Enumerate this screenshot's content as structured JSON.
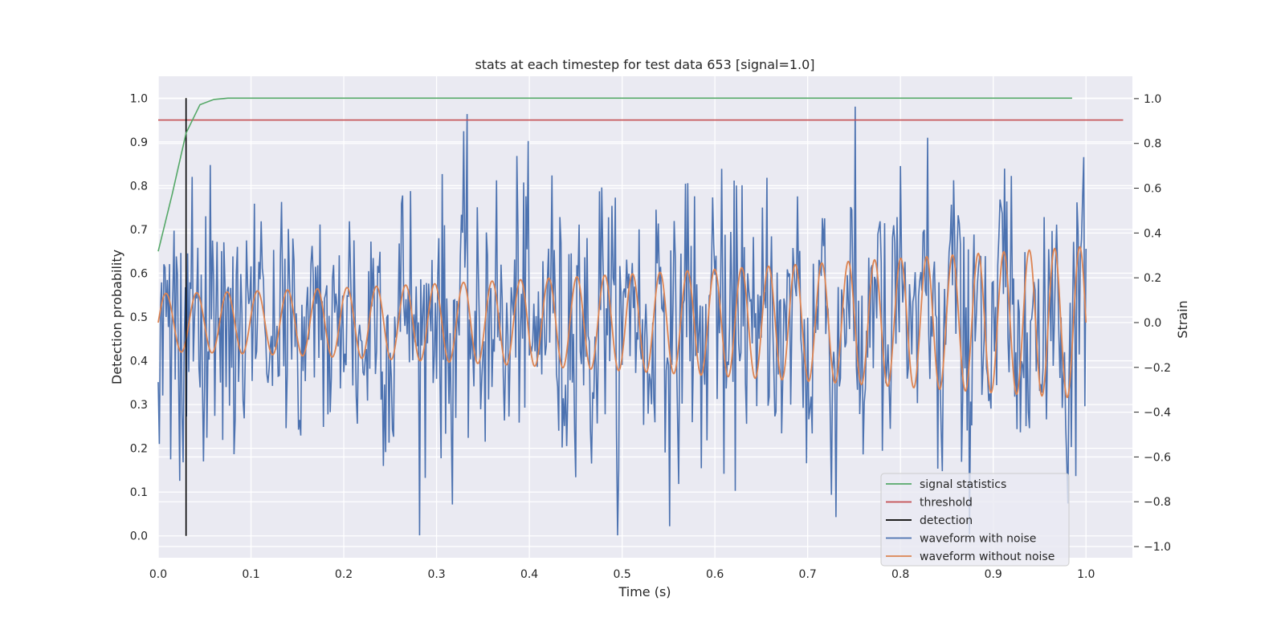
{
  "chart_data": {
    "type": "line",
    "title": "stats at each timestep for test data 653 [signal=1.0]",
    "xlabel": "Time (s)",
    "ylabel_left": "Detection probability",
    "ylabel_right": "Strain",
    "xlim": [
      0.0,
      1.05
    ],
    "ylim_left": [
      -0.05,
      1.05
    ],
    "ylim_right": [
      -1.05,
      1.1
    ],
    "grid": true,
    "legend_position": "lower-right",
    "x_ticks": [
      "0.0",
      "0.1",
      "0.2",
      "0.3",
      "0.4",
      "0.5",
      "0.6",
      "0.7",
      "0.8",
      "0.9",
      "1.0"
    ],
    "y_ticks_left": [
      "0.0",
      "0.1",
      "0.2",
      "0.3",
      "0.4",
      "0.5",
      "0.6",
      "0.7",
      "0.8",
      "0.9",
      "1.0"
    ],
    "y_ticks_right": [
      "−1.0",
      "−0.8",
      "−0.6",
      "−0.4",
      "−0.2",
      "0.0",
      "0.2",
      "0.4",
      "0.6",
      "0.8",
      "1.0"
    ],
    "series": [
      {
        "name": "signal statistics",
        "axis": "left",
        "color": "#55a868",
        "x": [
          0.0,
          0.015,
          0.03,
          0.045,
          0.06,
          0.075,
          0.1,
          0.2,
          0.4,
          0.6,
          0.8,
          0.985
        ],
        "y": [
          0.65,
          0.78,
          0.92,
          0.985,
          0.997,
          1.0,
          1.0,
          1.0,
          1.0,
          1.0,
          1.0,
          1.0
        ]
      },
      {
        "name": "threshold",
        "axis": "left",
        "color": "#c44e52",
        "x": [
          0.0,
          1.04
        ],
        "y": [
          0.95,
          0.95
        ]
      },
      {
        "name": "detection",
        "axis": "left",
        "color": "#000000",
        "x": [
          0.03,
          0.03
        ],
        "y": [
          0.0,
          1.0
        ]
      },
      {
        "name": "waveform with noise",
        "axis": "right",
        "color": "#4c72b0",
        "description": "noisy strain, 0 to 1 s, amplitude roughly between -0.95 and 1.0"
      },
      {
        "name": "waveform without noise",
        "axis": "right",
        "color": "#dd8452",
        "description": "chirp sinusoid, 0 to 1 s, amplitude growing from about 0.13 to 0.34"
      }
    ]
  }
}
